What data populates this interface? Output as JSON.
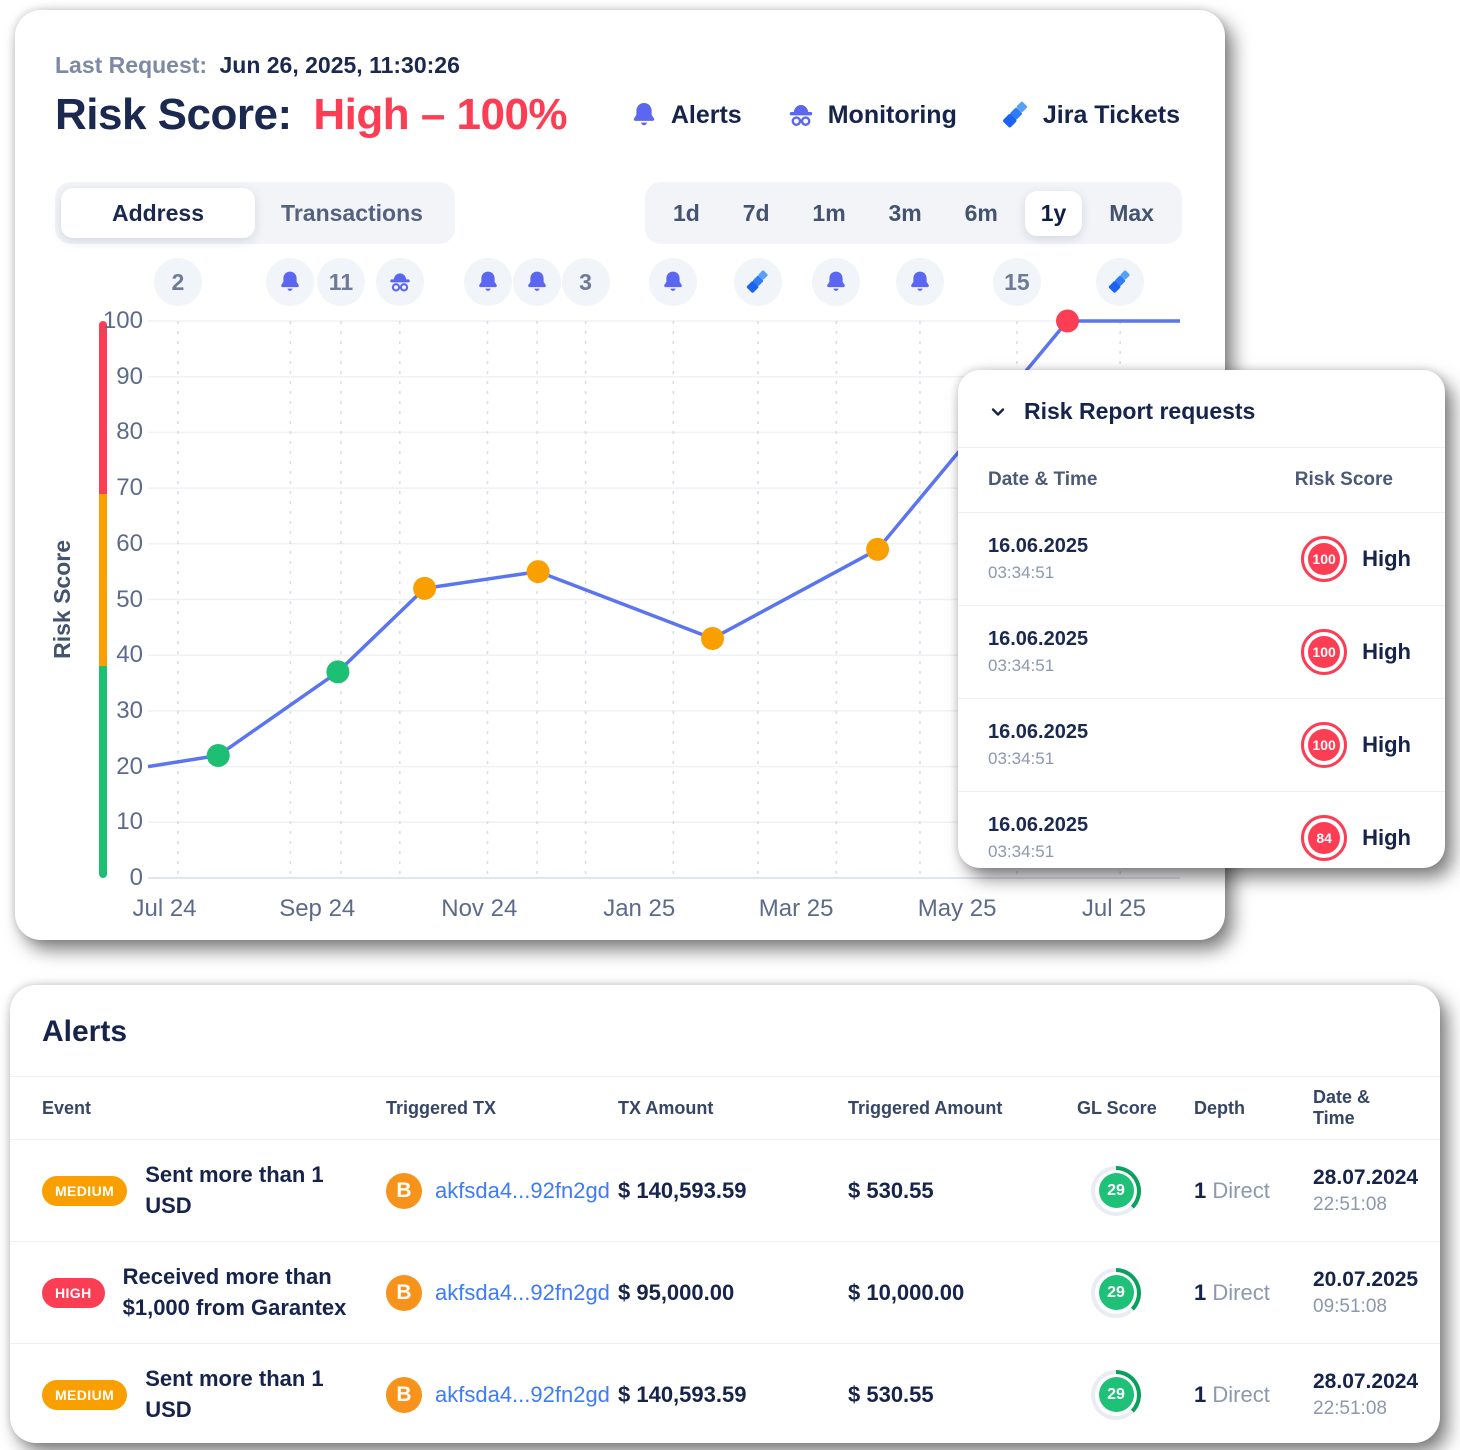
{
  "header": {
    "last_request_label": "Last Request:",
    "last_request_value": "Jun 26, 2025, 11:30:26",
    "title_label": "Risk Score:",
    "title_value": "High – 100%",
    "nav": [
      {
        "icon": "bell-icon",
        "label": "Alerts"
      },
      {
        "icon": "monitoring-icon",
        "label": "Monitoring"
      },
      {
        "icon": "jira-icon",
        "label": "Jira Tickets"
      }
    ]
  },
  "tabs": {
    "items": [
      "Address",
      "Transactions"
    ],
    "active": "Address"
  },
  "ranges": {
    "items": [
      "1d",
      "7d",
      "1m",
      "3m",
      "6m",
      "1y",
      "Max"
    ],
    "active": "1y"
  },
  "event_badges": [
    {
      "type": "count",
      "value": "2",
      "x": 2.9
    },
    {
      "type": "bell",
      "x": 13.8
    },
    {
      "type": "count",
      "value": "11",
      "x": 18.7
    },
    {
      "type": "monitoring",
      "x": 24.4
    },
    {
      "type": "bell",
      "x": 32.9
    },
    {
      "type": "bell",
      "x": 37.7
    },
    {
      "type": "count",
      "value": "3",
      "x": 42.4
    },
    {
      "type": "bell",
      "x": 50.9
    },
    {
      "type": "jira",
      "x": 59.1
    },
    {
      "type": "bell",
      "x": 66.7
    },
    {
      "type": "bell",
      "x": 74.8
    },
    {
      "type": "count",
      "value": "15",
      "x": 84.2
    },
    {
      "type": "jira",
      "x": 94.2
    }
  ],
  "chart_data": {
    "type": "line",
    "ylabel": "Risk Score",
    "ylim": [
      0,
      100
    ],
    "grid": true,
    "y_ticks": [
      0,
      10,
      20,
      30,
      40,
      50,
      60,
      70,
      80,
      90,
      100
    ],
    "line_color": "#5b75f0",
    "zones": [
      {
        "from": 0,
        "to": 38,
        "color": "#1dbf73"
      },
      {
        "from": 38,
        "to": 69,
        "color": "#f9a000"
      },
      {
        "from": 69,
        "to": 100,
        "color": "#fc3e54"
      }
    ],
    "line_path": [
      {
        "x": 0,
        "y": 20
      },
      {
        "x": 6.8,
        "y": 22
      },
      {
        "x": 18.4,
        "y": 37
      },
      {
        "x": 26.8,
        "y": 52
      },
      {
        "x": 37.8,
        "y": 55
      },
      {
        "x": 54.7,
        "y": 43
      },
      {
        "x": 70.7,
        "y": 59
      },
      {
        "x": 89.1,
        "y": 100
      },
      {
        "x": 100,
        "y": 100
      }
    ],
    "points": [
      {
        "x": 6.8,
        "y": 22,
        "color": "#1dbf73"
      },
      {
        "x": 18.4,
        "y": 37,
        "color": "#1dbf73"
      },
      {
        "x": 26.8,
        "y": 52,
        "color": "#f9a000"
      },
      {
        "x": 37.8,
        "y": 55,
        "color": "#f9a000"
      },
      {
        "x": 54.7,
        "y": 43,
        "color": "#f9a000"
      },
      {
        "x": 70.7,
        "y": 59,
        "color": "#f9a000"
      },
      {
        "x": 89.1,
        "y": 100,
        "color": "#fc3e54"
      }
    ],
    "x_ticks": [
      {
        "label": "Jul 24",
        "x": 1.6
      },
      {
        "label": "Sep 24",
        "x": 16.4
      },
      {
        "label": "Nov 24",
        "x": 32.1
      },
      {
        "label": "Jan 25",
        "x": 47.6
      },
      {
        "label": "Mar 25",
        "x": 62.8
      },
      {
        "label": "May 25",
        "x": 78.4
      },
      {
        "label": "Jul 25",
        "x": 93.6
      }
    ]
  },
  "risk_report": {
    "title": "Risk Report requests",
    "columns": [
      "Date & Time",
      "Risk Score"
    ],
    "rows": [
      {
        "date": "16.06.2025",
        "time": "03:34:51",
        "score": "100",
        "level": "High"
      },
      {
        "date": "16.06.2025",
        "time": "03:34:51",
        "score": "100",
        "level": "High"
      },
      {
        "date": "16.06.2025",
        "time": "03:34:51",
        "score": "100",
        "level": "High"
      },
      {
        "date": "16.06.2025",
        "time": "03:34:51",
        "score": "84",
        "level": "High"
      }
    ]
  },
  "alerts": {
    "title": "Alerts",
    "columns": [
      "Event",
      "Triggered TX",
      "TX Amount",
      "Triggered Amount",
      "GL Score",
      "Depth",
      "Date & Time"
    ],
    "rows": [
      {
        "severity": "MEDIUM",
        "severity_color": "#f9a000",
        "event": "Sent more than 1 USD",
        "tx": "akfsda4...92fn2gd",
        "tx_amount": "$ 140,593.59",
        "triggered_amount": "$ 530.55",
        "gl_score": "29",
        "depth_value": "1",
        "depth_label": "Direct",
        "date": "28.07.2024",
        "time": "22:51:08"
      },
      {
        "severity": "HIGH",
        "severity_color": "#fc3e54",
        "event": "Received more than $1,000 from Garantex",
        "tx": "akfsda4...92fn2gd",
        "tx_amount": "$ 95,000.00",
        "triggered_amount": "$ 10,000.00",
        "gl_score": "29",
        "depth_value": "1",
        "depth_label": "Direct",
        "date": "20.07.2025",
        "time": "09:51:08"
      },
      {
        "severity": "MEDIUM",
        "severity_color": "#f9a000",
        "event": "Sent more than 1 USD",
        "tx": "akfsda4...92fn2gd",
        "tx_amount": "$ 140,593.59",
        "triggered_amount": "$ 530.55",
        "gl_score": "29",
        "depth_value": "1",
        "depth_label": "Direct",
        "date": "28.07.2024",
        "time": "22:51:08"
      }
    ]
  },
  "colors": {
    "risk_red": "#fc3e54",
    "risk_orange": "#f9a000",
    "risk_green": "#1dbf73",
    "line_blue": "#5b75f0",
    "icon_indigo": "#5b67f1",
    "link_blue": "#3d7bf7",
    "bitcoin_orange": "#f7931a"
  }
}
